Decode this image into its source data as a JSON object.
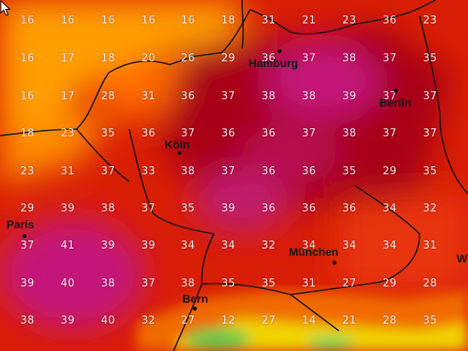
{
  "map": {
    "colors": {
      "cool": "#ff9f00",
      "warm": "#ff6a00",
      "hot": "#d81e05",
      "very_hot": "#a80015",
      "hottest": "#c4197a",
      "alpine": "#f0d400",
      "border": "#141414"
    },
    "grid": [
      [
        "16",
        "16",
        "16",
        "16",
        "16",
        "18",
        "31",
        "21",
        "23",
        "36",
        "23"
      ],
      [
        "16",
        "17",
        "18",
        "20",
        "26",
        "29",
        "36",
        "37",
        "38",
        "37",
        "35"
      ],
      [
        "16",
        "17",
        "28",
        "31",
        "36",
        "37",
        "38",
        "38",
        "39",
        "37",
        "37"
      ],
      [
        "18",
        "23",
        "35",
        "36",
        "37",
        "36",
        "36",
        "37",
        "38",
        "37",
        "37"
      ],
      [
        "23",
        "31",
        "37",
        "33",
        "38",
        "37",
        "36",
        "36",
        "35",
        "29",
        "35"
      ],
      [
        "29",
        "39",
        "38",
        "37",
        "35",
        "39",
        "36",
        "36",
        "36",
        "34",
        "32"
      ],
      [
        "37",
        "41",
        "39",
        "39",
        "34",
        "34",
        "32",
        "34",
        "34",
        "34",
        "31"
      ],
      [
        "39",
        "40",
        "38",
        "37",
        "38",
        "35",
        "35",
        "31",
        "27",
        "29",
        "28"
      ],
      [
        "38",
        "39",
        "40",
        "32",
        "27",
        "12",
        "27",
        "14",
        "21",
        "28",
        "35"
      ]
    ],
    "cities": [
      {
        "name": "Hamburg",
        "key": "hamburg"
      },
      {
        "name": "Berlin",
        "key": "berlin"
      },
      {
        "name": "Köln",
        "key": "koln"
      },
      {
        "name": "Paris",
        "key": "paris"
      },
      {
        "name": "München",
        "key": "munchen"
      },
      {
        "name": "Bern",
        "key": "bern"
      },
      {
        "name": "W",
        "key": "w"
      }
    ],
    "cursor_icon": "mouse-pointer-icon"
  }
}
